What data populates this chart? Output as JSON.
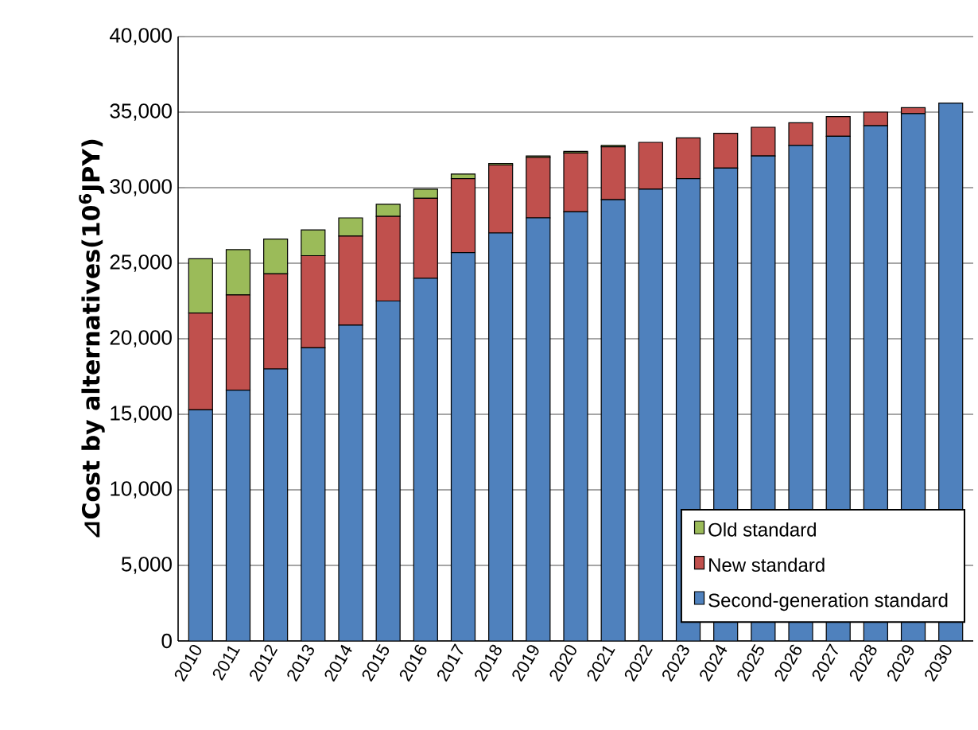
{
  "chart_data": {
    "type": "bar",
    "stacked": true,
    "ylabel": "⊿Cost by alternatives(10$^{6}$JPY)",
    "categories": [
      "2010",
      "2011",
      "2012",
      "2013",
      "2014",
      "2015",
      "2016",
      "2017",
      "2018",
      "2019",
      "2020",
      "2021",
      "2022",
      "2023",
      "2024",
      "2025",
      "2026",
      "2027",
      "2028",
      "2029",
      "2030"
    ],
    "series": [
      {
        "name": "Second-generation standard",
        "color": "#4f81bd",
        "values": [
          15300,
          16600,
          18000,
          19400,
          20900,
          22500,
          24000,
          25700,
          27000,
          28000,
          28400,
          29200,
          29900,
          30600,
          31300,
          32100,
          32800,
          33400,
          34100,
          34900,
          35600
        ]
      },
      {
        "name": "New standard",
        "color": "#c0504d",
        "values": [
          6400,
          6300,
          6300,
          6100,
          5900,
          5600,
          5300,
          4900,
          4500,
          4000,
          3900,
          3500,
          3100,
          2700,
          2300,
          1900,
          1500,
          1300,
          900,
          400,
          0
        ]
      },
      {
        "name": "Old standard",
        "color": "#9bbb59",
        "values": [
          3600,
          3000,
          2300,
          1700,
          1200,
          800,
          600,
          300,
          100,
          100,
          100,
          100,
          0,
          0,
          0,
          0,
          0,
          0,
          0,
          0,
          0
        ]
      }
    ],
    "ylim": [
      0,
      40000
    ],
    "yticks": [
      {
        "value": 0,
        "label": "0"
      },
      {
        "value": 5000,
        "label": "5,000"
      },
      {
        "value": 10000,
        "label": "10,000"
      },
      {
        "value": 15000,
        "label": "15,000"
      },
      {
        "value": 20000,
        "label": "20,000"
      },
      {
        "value": 25000,
        "label": "25,000"
      },
      {
        "value": 30000,
        "label": "30,000"
      },
      {
        "value": 35000,
        "label": "35,000"
      },
      {
        "value": 40000,
        "label": "40,000"
      }
    ],
    "grid": "y",
    "legend": "bottom right"
  }
}
